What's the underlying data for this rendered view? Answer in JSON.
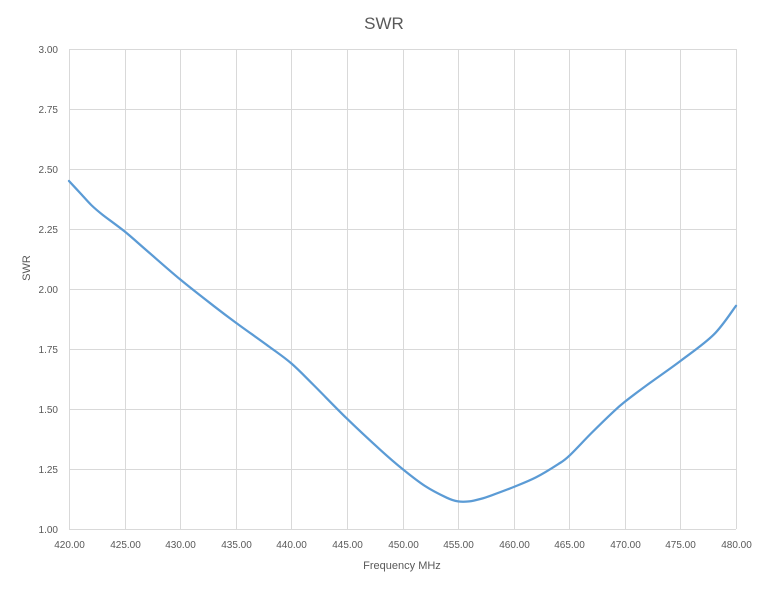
{
  "chart_data": {
    "type": "line",
    "title": "SWR",
    "xlabel": "Frequency MHz",
    "ylabel": "SWR",
    "xlim": [
      420,
      480
    ],
    "ylim": [
      1,
      3
    ],
    "grid": true,
    "x_ticks": [
      "420.00",
      "425.00",
      "430.00",
      "435.00",
      "440.00",
      "445.00",
      "450.00",
      "455.00",
      "460.00",
      "465.00",
      "470.00",
      "475.00",
      "480.00"
    ],
    "y_ticks": [
      "1.00",
      "1.25",
      "1.50",
      "1.75",
      "2.00",
      "2.25",
      "2.50",
      "2.75",
      "3.00"
    ],
    "series": [
      {
        "color": "#5b9bd5",
        "x": [
          420,
          421,
          422,
          423,
          425,
          427,
          430,
          433,
          435,
          438,
          440,
          442,
          445,
          448,
          450,
          452,
          454,
          455,
          456,
          457,
          458,
          460,
          462,
          464,
          465,
          467,
          469,
          470,
          472,
          475,
          478,
          480
        ],
        "y": [
          2.45,
          2.4,
          2.35,
          2.31,
          2.24,
          2.16,
          2.04,
          1.93,
          1.86,
          1.76,
          1.69,
          1.6,
          1.46,
          1.33,
          1.25,
          1.18,
          1.13,
          1.115,
          1.115,
          1.125,
          1.14,
          1.175,
          1.215,
          1.27,
          1.305,
          1.4,
          1.49,
          1.53,
          1.6,
          1.7,
          1.81,
          1.93
        ]
      }
    ]
  }
}
